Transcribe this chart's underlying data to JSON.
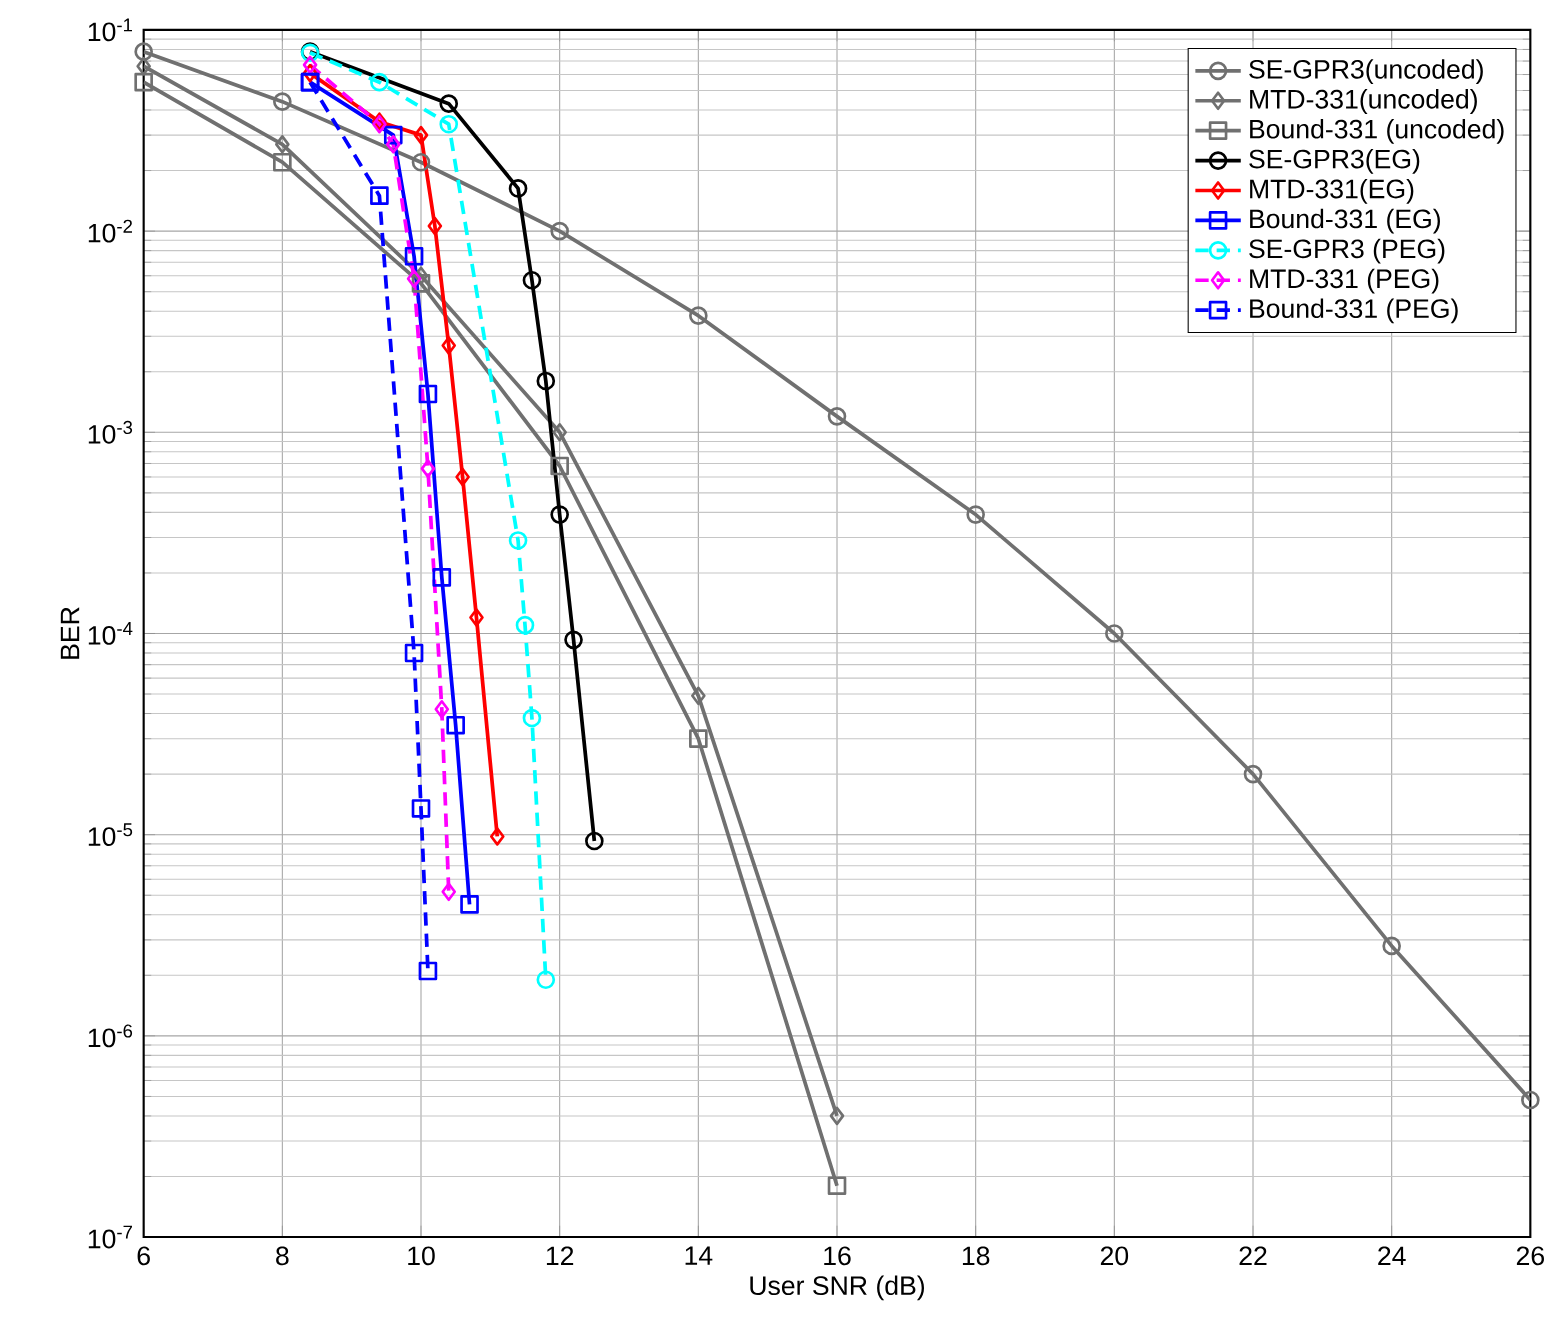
{
  "chart_data": {
    "type": "line",
    "xlabel": "User SNR (dB)",
    "ylabel": "BER",
    "log": "y",
    "grid": true,
    "legend": "top right",
    "xlim": [
      6,
      26
    ],
    "xticks": [
      6,
      8,
      10,
      12,
      14,
      16,
      18,
      20,
      22,
      24,
      26
    ],
    "ylim": [
      1e-07,
      0.1
    ],
    "yticks": [
      {
        "value": 1e-07,
        "label": "10$^{-7}$"
      },
      {
        "value": 1e-06,
        "label": "10$^{-6}$"
      },
      {
        "value": 1e-05,
        "label": "10$^{-5}$"
      },
      {
        "value": 0.0001,
        "label": "10$^{-4}$"
      },
      {
        "value": 0.001,
        "label": "10$^{-3}$"
      },
      {
        "value": 0.01,
        "label": "10$^{-2}$"
      },
      {
        "value": 0.1,
        "label": "10$^{-1}$"
      }
    ],
    "series": [
      {
        "name": "SE-GPR3(uncoded)",
        "color": "#707070",
        "marker": "circle",
        "line_style": "solid",
        "x": [
          6,
          8,
          10,
          12,
          14,
          16,
          18,
          20,
          22,
          24,
          26
        ],
        "values": [
          0.078,
          0.044,
          0.022,
          0.01,
          0.0038,
          0.0012,
          0.00039,
          0.0001,
          2e-05,
          2.8e-06,
          4.8e-07
        ]
      },
      {
        "name": "MTD-331(uncoded)",
        "color": "#707070",
        "marker": "diamond",
        "line_style": "solid",
        "x": [
          6,
          8,
          10,
          12,
          14,
          16
        ],
        "values": [
          0.066,
          0.027,
          0.006,
          0.001,
          4.9e-05,
          4e-07
        ]
      },
      {
        "name": "Bound-331 (uncoded)",
        "color": "#707070",
        "marker": "square",
        "line_style": "solid",
        "x": [
          6,
          8,
          10,
          12,
          14,
          16
        ],
        "values": [
          0.055,
          0.022,
          0.0055,
          0.00068,
          3e-05,
          1.8e-07
        ]
      },
      {
        "name": "SE-GPR3(EG)",
        "color": "#000000",
        "marker": "circle",
        "line_style": "solid",
        "x": [
          8.4,
          10.4,
          11.4,
          11.6,
          11.8,
          12.0,
          12.2,
          12.5
        ],
        "values": [
          0.078,
          0.043,
          0.0163,
          0.0057,
          0.0018,
          0.00039,
          9.3e-05,
          9.3e-06
        ]
      },
      {
        "name": "MTD-331(EG)",
        "color": "#ff0000",
        "marker": "diamond",
        "line_style": "solid",
        "x": [
          8.4,
          9.4,
          10.0,
          10.2,
          10.4,
          10.6,
          10.8,
          11.1
        ],
        "values": [
          0.061,
          0.035,
          0.03,
          0.0106,
          0.0027,
          0.0006,
          0.00012,
          9.8e-06
        ]
      },
      {
        "name": "Bound-331 (EG)",
        "color": "#0000ff",
        "marker": "square",
        "line_style": "solid",
        "x": [
          8.4,
          9.6,
          9.9,
          10.1,
          10.3,
          10.5,
          10.7
        ],
        "values": [
          0.055,
          0.03,
          0.0075,
          0.00155,
          0.00019,
          3.5e-05,
          4.5e-06
        ]
      },
      {
        "name": "SE-GPR3 (PEG)",
        "color": "#00ffff",
        "marker": "circle",
        "line_style": "dashed",
        "x": [
          8.4,
          9.4,
          10.4,
          11.4,
          11.5,
          11.6,
          11.8
        ],
        "values": [
          0.077,
          0.055,
          0.034,
          0.00029,
          0.00011,
          3.8e-05,
          1.9e-06
        ]
      },
      {
        "name": "MTD-331 (PEG)",
        "color": "#ff00ff",
        "marker": "diamond",
        "line_style": "dashed",
        "x": [
          8.4,
          9.4,
          9.6,
          9.9,
          10.1,
          10.3,
          10.4
        ],
        "values": [
          0.067,
          0.034,
          0.027,
          0.0058,
          0.00066,
          4.2e-05,
          5.2e-06
        ]
      },
      {
        "name": "Bound-331 (PEG)",
        "color": "#0000ff",
        "marker": "square",
        "line_style": "dashed",
        "x": [
          8.4,
          9.4,
          9.9,
          10.0,
          10.1
        ],
        "values": [
          0.055,
          0.015,
          8e-05,
          1.35e-05,
          2.1e-06
        ]
      }
    ]
  }
}
